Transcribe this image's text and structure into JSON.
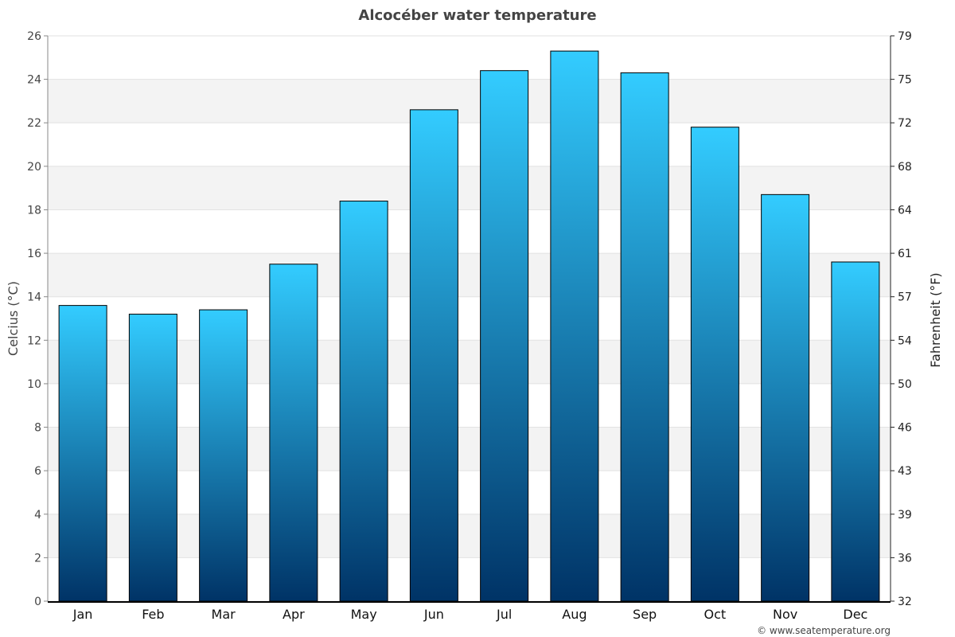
{
  "chart_data": {
    "type": "bar",
    "title": "Alcocéber water temperature",
    "ylabel": "Celcius (°C)",
    "y2label": "Fahrenheit (°F)",
    "categories": [
      "Jan",
      "Feb",
      "Mar",
      "Apr",
      "May",
      "Jun",
      "Jul",
      "Aug",
      "Sep",
      "Oct",
      "Nov",
      "Dec"
    ],
    "values": [
      13.6,
      13.2,
      13.4,
      15.5,
      18.4,
      22.6,
      24.4,
      25.3,
      24.3,
      21.8,
      18.7,
      15.6
    ],
    "ylim": [
      0,
      26
    ],
    "yticks": [
      0,
      2,
      4,
      6,
      8,
      10,
      12,
      14,
      16,
      18,
      20,
      22,
      24,
      26
    ],
    "y2ticks": [
      "32",
      "36",
      "39",
      "43",
      "46",
      "50",
      "54",
      "57",
      "61",
      "64",
      "68",
      "72",
      "75",
      "79"
    ],
    "grid": true,
    "colors": {
      "bar_top": "#33ccff",
      "bar_bottom": "#003366",
      "band": "#f3f3f3",
      "title": "#444444"
    }
  },
  "footer": {
    "credit": "© www.seatemperature.org"
  }
}
